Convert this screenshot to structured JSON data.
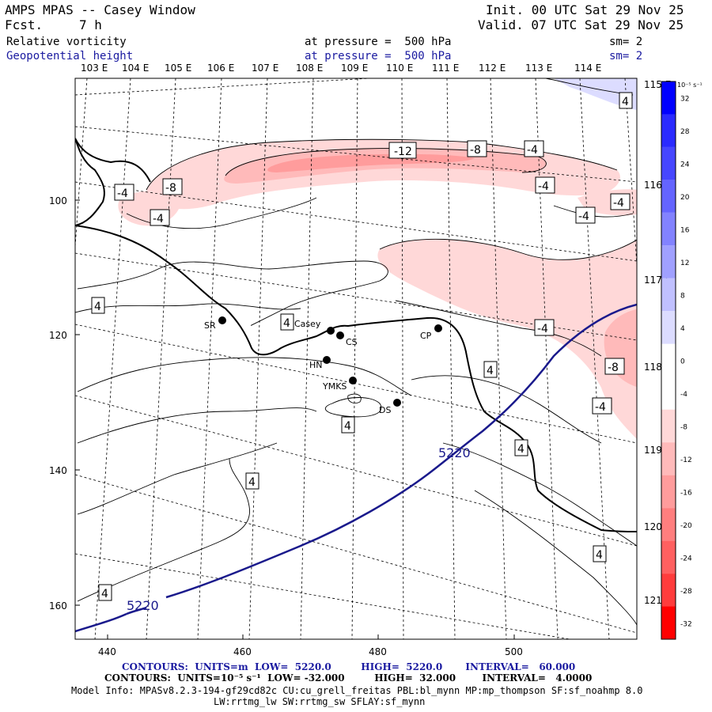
{
  "header": {
    "title": "AMPS MPAS -- Casey Window",
    "fcst_label": "Fcst.",
    "fcst_value": "7 h",
    "init": "Init. 00 UTC Sat 29 Nov 25",
    "valid": "Valid. 07 UTC Sat 29 Nov 25",
    "field1": {
      "name": "Relative vorticity",
      "level": "at pressure =  500 hPa",
      "sm": "sm= 2"
    },
    "field2": {
      "name": "Geopotential height",
      "level": "at pressure =  500 hPa",
      "sm": "sm= 2"
    }
  },
  "lon_labels_top": [
    "103 E",
    "104 E",
    "105 E",
    "106 E",
    "107 E",
    "108 E",
    "109 E",
    "110 E",
    "111 E",
    "112 E",
    "113 E",
    "114 E"
  ],
  "lon_labels_right": [
    "115 E",
    "116 E",
    "117 E",
    "118 E",
    "119 E",
    "120 E",
    "121 E"
  ],
  "y_ticks": [
    "100",
    "120",
    "140",
    "160"
  ],
  "x_ticks": [
    "440",
    "460",
    "480",
    "500"
  ],
  "stations": [
    "SR",
    "Casey",
    "CS",
    "CP",
    "HN",
    "YMKS",
    "DS"
  ],
  "contour_labels": {
    "vorticity": [
      "-12",
      "-8",
      "-4",
      "-8",
      "-4",
      "-4",
      "-4",
      "-4",
      "-4",
      "-4",
      "-8",
      "-4",
      "4",
      "4",
      "4",
      "4",
      "4",
      "4",
      "4",
      "4",
      "4",
      "-8"
    ],
    "height": [
      "5220",
      "5220"
    ]
  },
  "colorbar": {
    "units": "10⁻⁵ s⁻¹",
    "ticks": [
      "32",
      "28",
      "24",
      "20",
      "16",
      "12",
      "8",
      "4",
      "0",
      "-4",
      "-8",
      "-12",
      "-16",
      "-20",
      "-24",
      "-28",
      "-32"
    ],
    "colors": [
      "#0000ff",
      "#2a2aff",
      "#4646ff",
      "#6464ff",
      "#8282ff",
      "#a0a0ff",
      "#c0c0ff",
      "#dcdcff",
      "#ffffff",
      "#ffffff",
      "#ffd8d8",
      "#ffbaba",
      "#ff9c9c",
      "#ff7e7e",
      "#ff6060",
      "#ff3c3c",
      "#ff0000"
    ]
  },
  "footer": {
    "line1": "CONTOURS:  UNITS=m  LOW=  5220.0         HIGH=  5220.0       INTERVAL=   60.000",
    "line2": "CONTOURS:  UNITS=10⁻⁵ s⁻¹  LOW= -32.000         HIGH=  32.000        INTERVAL=   4.0000",
    "line3": "Model Info: MPASv8.2.3-194-gf29cd82c CU:cu_grell_freitas PBL:bl_mynn MP:mp_thompson SF:sf_noahmp 8.0",
    "line4": "LW:rrtmg_lw SW:rrtmg_sw SFLAY:sf_mynn"
  },
  "colors": {
    "height_contour": "#1a1a8c",
    "text_blue": "#1a1aa0"
  }
}
